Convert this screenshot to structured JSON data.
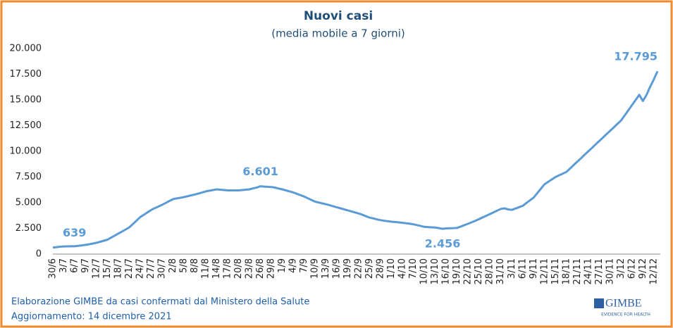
{
  "chart_data": {
    "type": "line",
    "title": "Nuovi casi",
    "subtitle": "(media mobile a 7 giorni)",
    "categories": [
      "30/6",
      null,
      null,
      "3/7",
      null,
      null,
      "6/7",
      null,
      null,
      "9/7",
      null,
      null,
      "12/7",
      null,
      null,
      "15/7",
      null,
      null,
      "18/7",
      null,
      null,
      "21/7",
      null,
      null,
      "24/7",
      null,
      null,
      "27/7",
      null,
      null,
      "30/7",
      null,
      null,
      "2/8",
      null,
      null,
      "5/8",
      null,
      null,
      "8/8",
      null,
      null,
      "11/8",
      null,
      null,
      "14/8",
      null,
      null,
      "17/8",
      null,
      null,
      "20/8",
      null,
      null,
      "23/8",
      null,
      null,
      "26/8",
      null,
      null,
      "29/8",
      null,
      null,
      "1/9",
      null,
      null,
      "4/9",
      null,
      null,
      "7/9",
      null,
      null,
      "10/9",
      null,
      null,
      "13/9",
      null,
      null,
      "16/9",
      null,
      null,
      "19/9",
      null,
      null,
      "22/9",
      null,
      null,
      "25/9",
      null,
      null,
      "28/9",
      null,
      null,
      "1/10",
      null,
      null,
      "4/10",
      null,
      null,
      "7/10",
      null,
      null,
      "10/10",
      null,
      null,
      "13/10",
      null,
      null,
      "16/10",
      null,
      null,
      "19/10",
      null,
      null,
      "22/10",
      null,
      null,
      "25/10",
      null,
      null,
      "28/10",
      null,
      null,
      "31/10",
      null,
      null,
      "3/11",
      null,
      null,
      "6/11",
      null,
      null,
      "9/11",
      null,
      null,
      "12/11",
      null,
      null,
      "15/11",
      null,
      null,
      "18/11",
      null,
      null,
      "21/11",
      null,
      null,
      "24/11",
      null,
      null,
      "27/11",
      null,
      null,
      "30/11",
      null,
      null,
      "3/12",
      null,
      null,
      "6/12",
      null,
      null,
      "9/12",
      null,
      null,
      "12/12",
      null
    ],
    "values": [
      639,
      680,
      720,
      750,
      755,
      758,
      760,
      800,
      850,
      900,
      960,
      1030,
      1100,
      1200,
      1300,
      1400,
      1600,
      1800,
      2000,
      2200,
      2400,
      2600,
      2930,
      3270,
      3600,
      3830,
      4070,
      4300,
      4470,
      4630,
      4800,
      4980,
      5170,
      5350,
      5420,
      5480,
      5550,
      5630,
      5720,
      5800,
      5900,
      6000,
      6100,
      6170,
      6230,
      6300,
      6270,
      6230,
      6200,
      6200,
      6200,
      6200,
      6230,
      6270,
      6300,
      6400,
      6480,
      6601,
      6570,
      6550,
      6530,
      6470,
      6380,
      6300,
      6200,
      6100,
      6000,
      5870,
      5730,
      5600,
      5430,
      5270,
      5100,
      5020,
      4930,
      4850,
      4750,
      4650,
      4550,
      4450,
      4350,
      4250,
      4150,
      4050,
      3950,
      3820,
      3680,
      3550,
      3470,
      3380,
      3300,
      3250,
      3200,
      3150,
      3120,
      3080,
      3050,
      3000,
      2950,
      2900,
      2820,
      2730,
      2650,
      2630,
      2600,
      2580,
      2530,
      2456,
      2500,
      2520,
      2530,
      2550,
      2680,
      2820,
      2950,
      3100,
      3250,
      3400,
      3570,
      3730,
      3900,
      4070,
      4230,
      4400,
      4450,
      4350,
      4300,
      4430,
      4570,
      4700,
      4970,
      5230,
      5500,
      5930,
      6370,
      6800,
      7030,
      7270,
      7500,
      7670,
      7830,
      8000,
      8330,
      8670,
      9000,
      9330,
      9670,
      10000,
      10330,
      10670,
      11000,
      11330,
      11670,
      12000,
      12330,
      12670,
      13000,
      13500,
      14000,
      14500,
      15000,
      15500,
      14900,
      15500,
      16300,
      17000,
      17795
    ],
    "value_labels": [
      "639",
      null,
      null,
      null,
      null,
      null,
      null,
      null,
      null,
      null,
      null,
      null,
      null,
      null,
      null,
      null,
      null,
      null,
      null,
      null,
      null,
      null,
      null,
      null,
      null,
      null,
      null,
      null,
      null,
      null,
      null,
      null,
      null,
      null,
      null,
      null,
      null,
      null,
      null,
      null,
      null,
      null,
      null,
      null,
      null,
      null,
      null,
      null,
      null,
      null,
      null,
      null,
      null,
      null,
      null,
      null,
      null,
      "6.601",
      null,
      null,
      null,
      null,
      null,
      null,
      null,
      null,
      null,
      null,
      null,
      null,
      null,
      null,
      null,
      null,
      null,
      null,
      null,
      null,
      null,
      null,
      null,
      null,
      null,
      null,
      null,
      null,
      null,
      null,
      null,
      null,
      null,
      null,
      null,
      null,
      null,
      null,
      null,
      null,
      null,
      null,
      null,
      null,
      null,
      null,
      null,
      null,
      null,
      "2.456",
      null,
      null,
      null,
      null,
      null,
      null,
      null,
      null,
      null,
      null,
      null,
      null,
      null,
      null,
      null,
      null,
      null,
      null,
      null,
      null,
      null,
      null,
      null,
      null,
      null,
      null,
      null,
      null,
      null,
      null,
      null,
      null,
      null,
      null,
      null,
      null,
      null,
      null,
      null,
      null,
      null,
      null,
      null,
      null,
      null,
      null,
      null,
      null,
      null,
      null,
      null,
      null,
      null,
      null,
      null,
      null,
      null,
      null,
      "17.795"
    ],
    "color": "#5b9bd5",
    "ylim": [
      0,
      20000
    ],
    "yticks": [
      0,
      {
        "value": 2500,
        "label": "2.500"
      },
      {
        "value": 5000,
        "label": "5.000"
      },
      {
        "value": 7500,
        "label": "7.500"
      },
      {
        "value": 10000,
        "label": "10.000"
      },
      {
        "value": 12500,
        "label": "12.500"
      },
      {
        "value": 15000,
        "label": "15.000"
      },
      {
        "value": 17500,
        "label": "17.500"
      },
      {
        "value": 20000,
        "label": "20.000"
      }
    ],
    "grid": false,
    "source": "Elaborazione GIMBE da casi confermati dal Ministero della Salute",
    "updated": "Aggiornamento: 14 dicembre 2021",
    "logo": {
      "name": "GIMBE",
      "tagline": "EVIDENCE FOR HEALTH"
    }
  }
}
